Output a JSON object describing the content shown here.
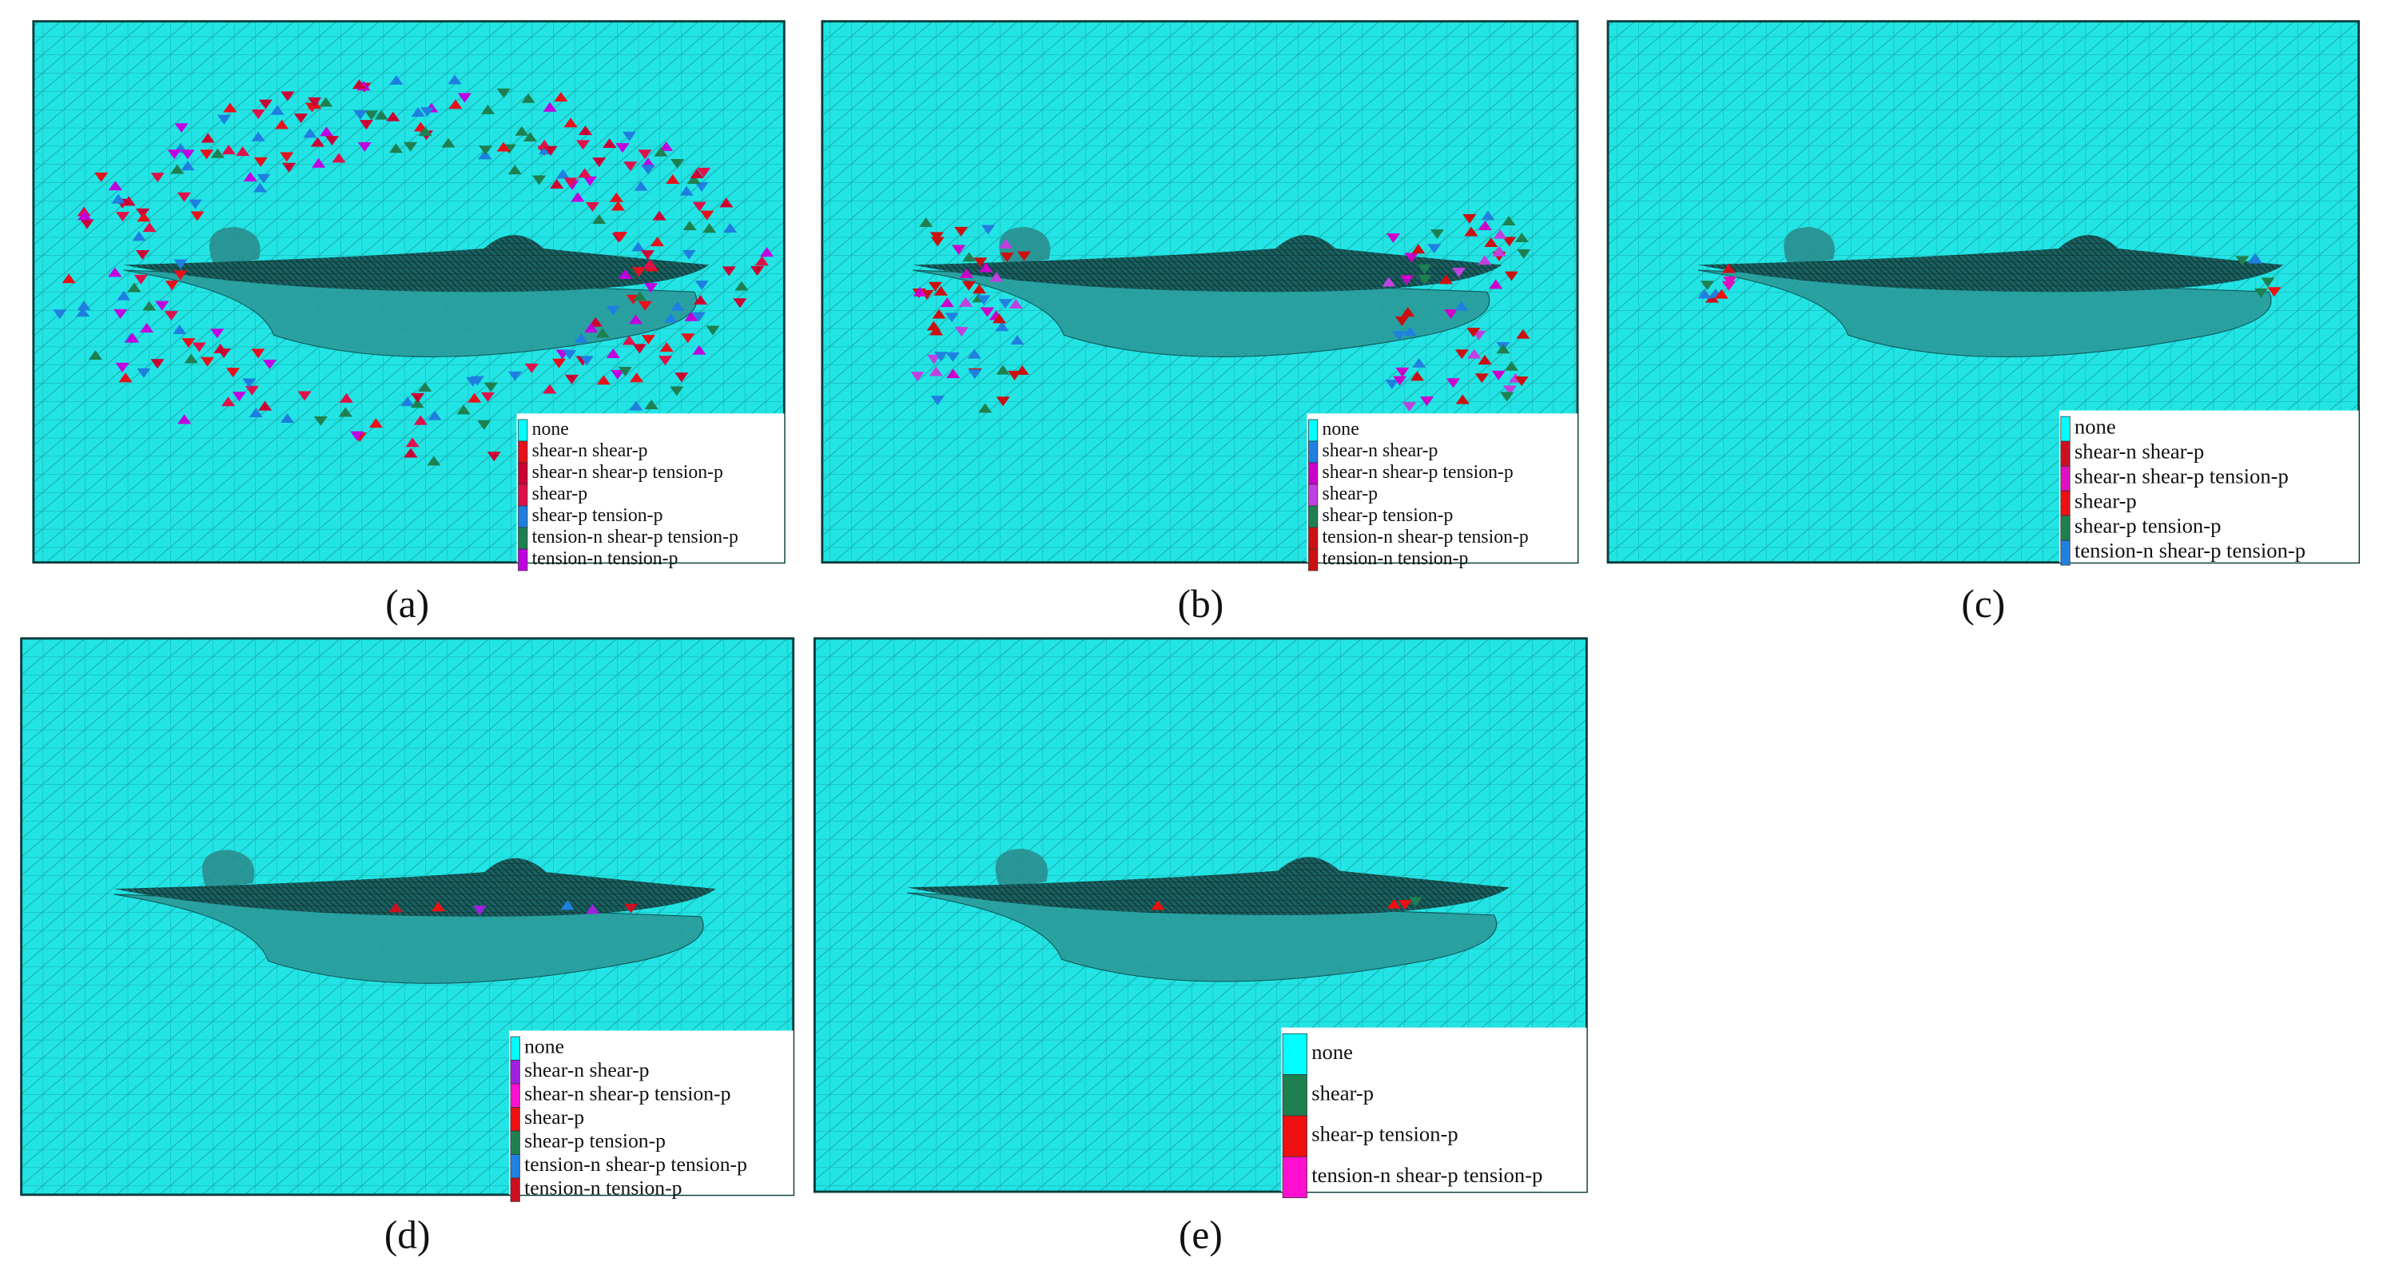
{
  "panels": [
    {
      "label": "(a)",
      "legend": [
        {
          "text": "none",
          "color": "#00ffff"
        },
        {
          "text": "shear-n shear-p",
          "color": "#e8101a"
        },
        {
          "text": "shear-n shear-p tension-p",
          "color": "#cc0033"
        },
        {
          "text": "shear-p",
          "color": "#e0104a"
        },
        {
          "text": "shear-p tension-p",
          "color": "#1e7fe0"
        },
        {
          "text": "tension-n shear-p tension-p",
          "color": "#1e8050"
        },
        {
          "text": "tension-n tension-p",
          "color": "#c000e0"
        }
      ]
    },
    {
      "label": "(b)",
      "legend": [
        {
          "text": "none",
          "color": "#00ffff"
        },
        {
          "text": "shear-n shear-p",
          "color": "#2080e0"
        },
        {
          "text": "shear-n shear-p tension-p",
          "color": "#cc00cc"
        },
        {
          "text": "shear-p",
          "color": "#c040e0"
        },
        {
          "text": "shear-p tension-p",
          "color": "#1e8050"
        },
        {
          "text": "tension-n shear-p tension-p",
          "color": "#cc1010"
        },
        {
          "text": "tension-n tension-p",
          "color": "#cc1010"
        }
      ]
    },
    {
      "label": "(c)",
      "legend": [
        {
          "text": "none",
          "color": "#00ffff"
        },
        {
          "text": "shear-n shear-p",
          "color": "#cc1020"
        },
        {
          "text": "shear-n shear-p tension-p",
          "color": "#e010c0"
        },
        {
          "text": "shear-p",
          "color": "#ee1010"
        },
        {
          "text": "shear-p tension-p",
          "color": "#1e8050"
        },
        {
          "text": "tension-n shear-p tension-p",
          "color": "#2080e0"
        }
      ]
    },
    {
      "label": "(d)",
      "legend": [
        {
          "text": "none",
          "color": "#00ffff"
        },
        {
          "text": "shear-n shear-p",
          "color": "#a020e0"
        },
        {
          "text": "shear-n shear-p tension-p",
          "color": "#ff10d0"
        },
        {
          "text": "shear-p",
          "color": "#ee1010"
        },
        {
          "text": "shear-p tension-p",
          "color": "#1e8050"
        },
        {
          "text": "tension-n shear-p tension-p",
          "color": "#2080e0"
        },
        {
          "text": "tension-n tension-p",
          "color": "#cc1020"
        }
      ]
    },
    {
      "label": "(e)",
      "legend": [
        {
          "text": "none",
          "color": "#00ffff"
        },
        {
          "text": "shear-p",
          "color": "#1e8050"
        },
        {
          "text": "shear-p tension-p",
          "color": "#ee1010"
        },
        {
          "text": "tension-n shear-p tension-p",
          "color": "#ff10d0"
        }
      ]
    }
  ]
}
